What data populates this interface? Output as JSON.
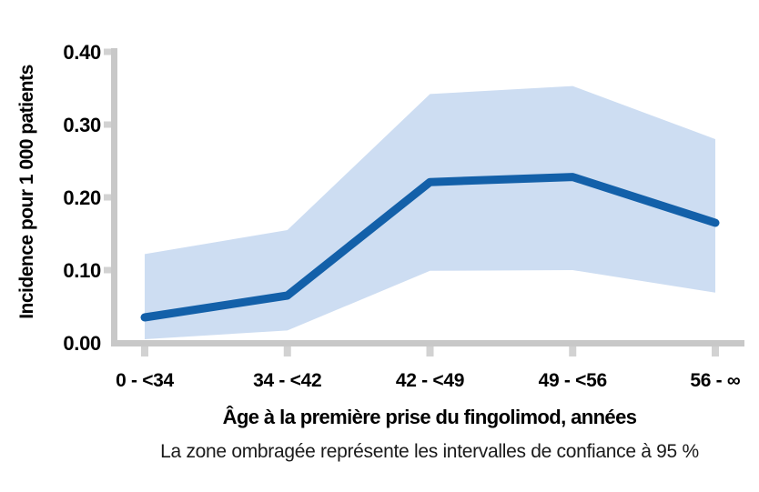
{
  "chart": {
    "colors": {
      "line": "#1360a9",
      "band": "#cdddf2",
      "axis": "#c8c8c8",
      "tick": "#d2d2d2",
      "text": "#000000"
    }
  },
  "chart_data": {
    "type": "line",
    "categories": [
      "0 - <34",
      "34 - <42",
      "42 - <49",
      "49 - <56",
      "56 - ∞"
    ],
    "series": [
      {
        "name": "Incidence",
        "values": [
          0.035,
          0.065,
          0.221,
          0.228,
          0.165
        ]
      },
      {
        "name": "IC 95 % borne supérieure",
        "values": [
          0.122,
          0.155,
          0.342,
          0.353,
          0.28
        ]
      },
      {
        "name": "IC 95 % borne inférieure",
        "values": [
          0.005,
          0.017,
          0.099,
          0.1,
          0.069
        ]
      }
    ],
    "title": "",
    "xlabel": "Âge à la première prise du fingolimod, années",
    "ylabel": "Incidence pour 1 000 patients",
    "yticks": [
      0.4,
      0.3,
      0.2,
      0.1,
      0.0
    ],
    "ylim": [
      0,
      0.4
    ],
    "grid": false,
    "legend": "none",
    "annotation": "La zone ombragée représente les intervalles de confiance à 95 %"
  }
}
